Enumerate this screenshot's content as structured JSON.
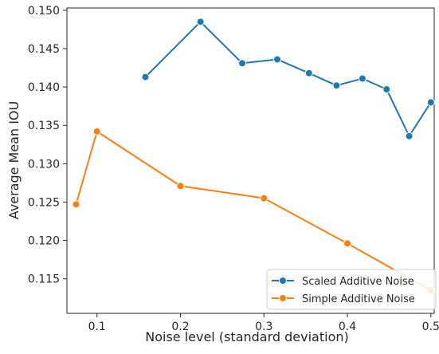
{
  "chart_data": {
    "type": "line",
    "title": "",
    "xlabel": "Noise level (standard deviation)",
    "ylabel": "Average Mean IOU",
    "xlim": [
      0.064,
      0.504
    ],
    "ylim": [
      0.1105,
      0.1503
    ],
    "x_ticks": [
      0.1,
      0.2,
      0.3,
      0.4,
      0.5
    ],
    "x_tick_labels": [
      "0.1",
      "0.2",
      "0.3",
      "0.4",
      "0.5"
    ],
    "y_ticks": [
      0.115,
      0.12,
      0.125,
      0.13,
      0.135,
      0.14,
      0.145,
      0.15
    ],
    "y_tick_labels": [
      "0.115",
      "0.120",
      "0.125",
      "0.130",
      "0.135",
      "0.140",
      "0.145",
      "0.150"
    ],
    "grid": false,
    "legend_position": "lower-right",
    "series": [
      {
        "name": "Scaled Additive Noise",
        "color": "#1f77b4",
        "marker": "circle",
        "x": [
          0.158,
          0.224,
          0.274,
          0.316,
          0.354,
          0.387,
          0.418,
          0.447,
          0.474,
          0.5
        ],
        "y": [
          0.1413,
          0.1485,
          0.1431,
          0.1436,
          0.1418,
          0.1402,
          0.1411,
          0.1397,
          0.1336,
          0.138
        ]
      },
      {
        "name": "Simple Additive Noise",
        "color": "#ff7f0e",
        "marker": "circle",
        "x": [
          0.075,
          0.1,
          0.2,
          0.3,
          0.4,
          0.5
        ],
        "y": [
          0.1247,
          0.1342,
          0.1271,
          0.1255,
          0.1196,
          0.1135
        ]
      }
    ]
  }
}
